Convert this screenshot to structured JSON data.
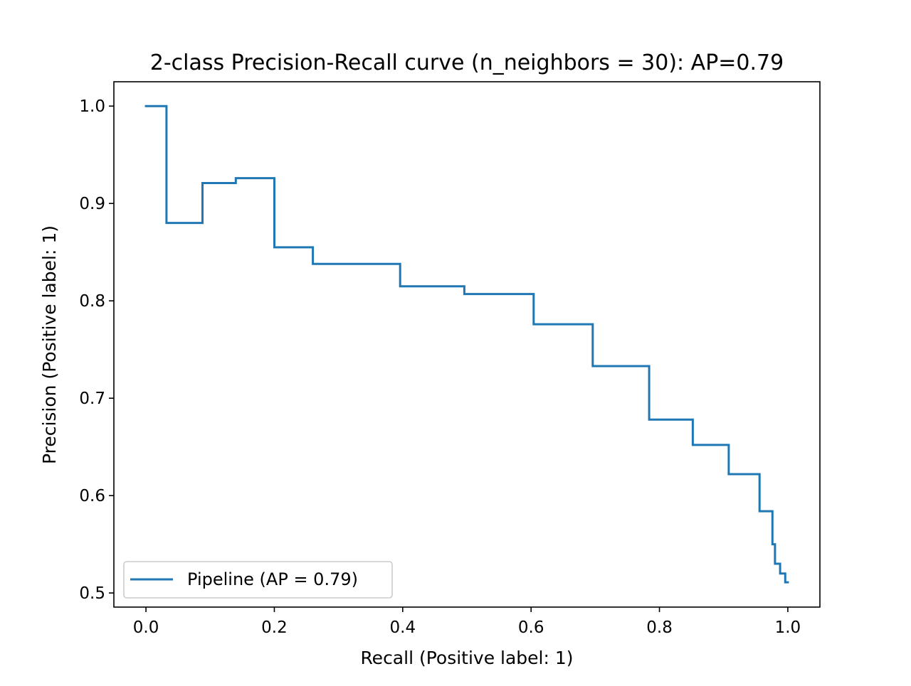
{
  "chart_data": {
    "type": "line",
    "drawstyle": "steps-post",
    "title": "2-class Precision-Recall curve (n_neighbors = 30): AP=0.79",
    "xlabel": "Recall (Positive label: 1)",
    "ylabel": "Precision (Positive label: 1)",
    "xlim": [
      -0.05,
      1.05
    ],
    "ylim": [
      0.4855,
      1.025
    ],
    "xticks": [
      0.0,
      0.2,
      0.4,
      0.6,
      0.8,
      1.0
    ],
    "xtick_labels": [
      "0.0",
      "0.2",
      "0.4",
      "0.6",
      "0.8",
      "1.0"
    ],
    "yticks": [
      0.5,
      0.6,
      0.7,
      0.8,
      0.9,
      1.0
    ],
    "ytick_labels": [
      "0.5",
      "0.6",
      "0.7",
      "0.8",
      "0.9",
      "1.0"
    ],
    "grid": false,
    "legend_position": "lower-left",
    "series": [
      {
        "name": "Pipeline (AP = 0.79)",
        "color": "#1f77b4",
        "points": [
          [
            0.0,
            1.0
          ],
          [
            0.032,
            1.0
          ],
          [
            0.032,
            0.88
          ],
          [
            0.088,
            0.88
          ],
          [
            0.088,
            0.921
          ],
          [
            0.14,
            0.921
          ],
          [
            0.14,
            0.926
          ],
          [
            0.2,
            0.926
          ],
          [
            0.2,
            0.855
          ],
          [
            0.26,
            0.855
          ],
          [
            0.26,
            0.838
          ],
          [
            0.396,
            0.838
          ],
          [
            0.396,
            0.815
          ],
          [
            0.496,
            0.815
          ],
          [
            0.496,
            0.807
          ],
          [
            0.604,
            0.807
          ],
          [
            0.604,
            0.776
          ],
          [
            0.696,
            0.776
          ],
          [
            0.696,
            0.733
          ],
          [
            0.784,
            0.733
          ],
          [
            0.784,
            0.678
          ],
          [
            0.852,
            0.678
          ],
          [
            0.852,
            0.652
          ],
          [
            0.908,
            0.652
          ],
          [
            0.908,
            0.622
          ],
          [
            0.956,
            0.622
          ],
          [
            0.956,
            0.584
          ],
          [
            0.976,
            0.584
          ],
          [
            0.976,
            0.55
          ],
          [
            0.98,
            0.55
          ],
          [
            0.98,
            0.53
          ],
          [
            0.988,
            0.53
          ],
          [
            0.988,
            0.52
          ],
          [
            0.996,
            0.52
          ],
          [
            0.996,
            0.511
          ],
          [
            1.0,
            0.511
          ]
        ]
      }
    ]
  }
}
